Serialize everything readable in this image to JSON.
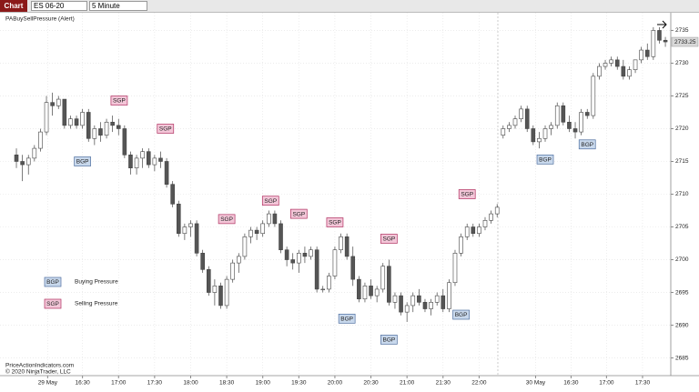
{
  "toolbar": {
    "tab": "Chart",
    "instrument": "ES 06-20",
    "interval": "5 Minute"
  },
  "chart_data": {
    "type": "candlestick",
    "title": "PABuySellPressure (Alert)",
    "footer": [
      "PriceActionIndicators.com",
      "© 2020 NinjaTrader, LLC"
    ],
    "ohlc": [
      [
        2716,
        2717,
        2714,
        2715
      ],
      [
        2715,
        2716,
        2712,
        2714.5
      ],
      [
        2714.5,
        2716,
        2713,
        2715.5
      ],
      [
        2715.5,
        2717.5,
        2715,
        2717
      ],
      [
        2717,
        2720,
        2716.5,
        2719.5
      ],
      [
        2719.5,
        2725,
        2719,
        2724
      ],
      [
        2724,
        2725.5,
        2722,
        2723.5
      ],
      [
        2723.5,
        2725,
        2723,
        2724.5
      ],
      [
        2724.5,
        2724.5,
        2720,
        2720.5
      ],
      [
        2720.5,
        2722,
        2720,
        2721.5
      ],
      [
        2721.5,
        2722,
        2720,
        2720.5
      ],
      [
        2720.5,
        2723,
        2720,
        2722.5
      ],
      [
        2722.5,
        2723,
        2718,
        2718.5
      ],
      [
        2718.5,
        2720.5,
        2717.5,
        2720
      ],
      [
        2720,
        2721,
        2718,
        2719
      ],
      [
        2719,
        2721.5,
        2718.5,
        2721
      ],
      [
        2721,
        2722,
        2719.5,
        2720.5
      ],
      [
        2720.5,
        2721.5,
        2719,
        2720
      ],
      [
        2720,
        2720.5,
        2715.5,
        2716
      ],
      [
        2716,
        2716.5,
        2713,
        2714
      ],
      [
        2714,
        2716,
        2713,
        2715.5
      ],
      [
        2715.5,
        2717,
        2714,
        2716.5
      ],
      [
        2716.5,
        2717,
        2714,
        2714.5
      ],
      [
        2714.5,
        2716,
        2713.5,
        2715.5
      ],
      [
        2715.5,
        2716.5,
        2714,
        2715
      ],
      [
        2715,
        2715.5,
        2711,
        2711.5
      ],
      [
        2711.5,
        2712,
        2708,
        2708.5
      ],
      [
        2708.5,
        2709,
        2703.5,
        2704
      ],
      [
        2704,
        2705.5,
        2703,
        2705
      ],
      [
        2705,
        2706,
        2703.5,
        2705.5
      ],
      [
        2705.5,
        2706,
        2700.5,
        2701
      ],
      [
        2701,
        2701.5,
        2698,
        2698.5
      ],
      [
        2698.5,
        2699,
        2694.5,
        2695
      ],
      [
        2695,
        2697,
        2693,
        2696
      ],
      [
        2696,
        2696.5,
        2692.5,
        2693
      ],
      [
        2693,
        2697.5,
        2692.5,
        2697
      ],
      [
        2697,
        2700,
        2696.5,
        2699.5
      ],
      [
        2699.5,
        2701,
        2698,
        2700.5
      ],
      [
        2700.5,
        2704,
        2700,
        2703.5
      ],
      [
        2703.5,
        2705,
        2702.5,
        2704.5
      ],
      [
        2704.5,
        2705,
        2703,
        2704
      ],
      [
        2704,
        2706,
        2703.5,
        2705.5
      ],
      [
        2705.5,
        2707.5,
        2705,
        2707
      ],
      [
        2707,
        2707.5,
        2705,
        2705.5
      ],
      [
        2705.5,
        2706,
        2701,
        2701.5
      ],
      [
        2701.5,
        2702,
        2699,
        2700
      ],
      [
        2700,
        2701,
        2698.5,
        2699.5
      ],
      [
        2699.5,
        2701.5,
        2698,
        2701
      ],
      [
        2701,
        2702,
        2699.5,
        2700.5
      ],
      [
        2700.5,
        2702,
        2700,
        2701.5
      ],
      [
        2701.5,
        2702,
        2695,
        2695.5
      ],
      [
        2695.5,
        2696,
        2695,
        2695.5
      ],
      [
        2695.5,
        2698,
        2695,
        2697.5
      ],
      [
        2697.5,
        2702,
        2697,
        2701.5
      ],
      [
        2701.5,
        2704,
        2701,
        2703.5
      ],
      [
        2703.5,
        2704,
        2700,
        2700.5
      ],
      [
        2700.5,
        2702,
        2696,
        2697
      ],
      [
        2697,
        2697.5,
        2693.5,
        2694
      ],
      [
        2694,
        2696.5,
        2693.5,
        2696
      ],
      [
        2696,
        2697,
        2694,
        2694.5
      ],
      [
        2694.5,
        2696,
        2693.5,
        2695.5
      ],
      [
        2695.5,
        2699.5,
        2695,
        2699
      ],
      [
        2699,
        2700,
        2693,
        2693.5
      ],
      [
        2693.5,
        2695,
        2692.5,
        2694.5
      ],
      [
        2694.5,
        2695,
        2691.5,
        2692
      ],
      [
        2692,
        2693.5,
        2690.5,
        2693
      ],
      [
        2693,
        2695,
        2692,
        2694.5
      ],
      [
        2694.5,
        2695.5,
        2693,
        2693.5
      ],
      [
        2693.5,
        2694,
        2692,
        2692.5
      ],
      [
        2692.5,
        2694,
        2691.5,
        2693.5
      ],
      [
        2693.5,
        2695,
        2693,
        2694.5
      ],
      [
        2694.5,
        2695.5,
        2692,
        2692.5
      ],
      [
        2692.5,
        2697,
        2692,
        2696.5
      ],
      [
        2696.5,
        2701.5,
        2696,
        2701
      ],
      [
        2701,
        2704,
        2700.5,
        2703.5
      ],
      [
        2703.5,
        2705.5,
        2703,
        2705
      ],
      [
        2705,
        2705.5,
        2703.5,
        2704
      ],
      [
        2704,
        2705.5,
        2703.5,
        2705
      ],
      [
        2705,
        2706.5,
        2704.5,
        2706
      ],
      [
        2706,
        2707.5,
        2705.5,
        2707
      ],
      [
        2707,
        2708.5,
        2706.5,
        2708
      ],
      [
        2719,
        2720.5,
        2718.5,
        2720
      ],
      [
        2720,
        2721,
        2719.5,
        2720.5
      ],
      [
        2720.5,
        2722,
        2720,
        2721.5
      ],
      [
        2721.5,
        2723.5,
        2721,
        2723
      ],
      [
        2723,
        2723.5,
        2719.5,
        2720
      ],
      [
        2720,
        2720.5,
        2717.5,
        2718
      ],
      [
        2718,
        2719.5,
        2717,
        2718.5
      ],
      [
        2718.5,
        2720.5,
        2718,
        2720
      ],
      [
        2720,
        2721,
        2719,
        2720.5
      ],
      [
        2720.5,
        2724,
        2720,
        2723.5
      ],
      [
        2723.5,
        2724,
        2720.5,
        2721
      ],
      [
        2721,
        2722,
        2719.5,
        2720
      ],
      [
        2720,
        2721,
        2718.5,
        2719.5
      ],
      [
        2719.5,
        2723,
        2719,
        2722.5
      ],
      [
        2722.5,
        2723,
        2721.5,
        2722
      ],
      [
        2722,
        2728.5,
        2721.5,
        2728
      ],
      [
        2728,
        2730,
        2727.5,
        2729.5
      ],
      [
        2729.5,
        2730.5,
        2729,
        2730
      ],
      [
        2730,
        2731,
        2729.5,
        2730.5
      ],
      [
        2730.5,
        2731,
        2729,
        2729.5
      ],
      [
        2729.5,
        2730.5,
        2727.5,
        2728
      ],
      [
        2728,
        2729.5,
        2727.5,
        2729
      ],
      [
        2729,
        2730.5,
        2728.5,
        2730.5
      ],
      [
        2730.5,
        2732.5,
        2730,
        2732
      ],
      [
        2732,
        2733,
        2730.5,
        2731
      ],
      [
        2731,
        2735.5,
        2730.5,
        2735
      ],
      [
        2735,
        2735.5,
        2733,
        2733.5
      ],
      [
        2733.5,
        2734,
        2732.5,
        2733.25
      ]
    ],
    "last_price": 2733.25,
    "xlim": [
      -2.73,
      108.9
    ],
    "xticks": [
      {
        "value": 5.2,
        "label": "29 May"
      },
      {
        "value": 11,
        "label": "16:30"
      },
      {
        "value": 17,
        "label": "17:00"
      },
      {
        "value": 23,
        "label": "17:30"
      },
      {
        "value": 29,
        "label": "18:00"
      },
      {
        "value": 35,
        "label": "18:30"
      },
      {
        "value": 41,
        "label": "19:00"
      },
      {
        "value": 47,
        "label": "19:30"
      },
      {
        "value": 53,
        "label": "20:00"
      },
      {
        "value": 59,
        "label": "20:30"
      },
      {
        "value": 65,
        "label": "21:00"
      },
      {
        "value": 71,
        "label": "21:30"
      },
      {
        "value": 77,
        "label": "22:00"
      },
      {
        "value": 86.4,
        "label": "30 May"
      },
      {
        "value": 92.3,
        "label": "16:30"
      },
      {
        "value": 98.2,
        "label": "17:00"
      },
      {
        "value": 104.2,
        "label": "17:30"
      }
    ],
    "ylim": [
      2682.3,
      2737.7
    ],
    "yticks": [
      2685,
      2690,
      2695,
      2700,
      2705,
      2710,
      2715,
      2720,
      2725,
      2730,
      2735
    ],
    "grid": true,
    "signals": [
      {
        "label": "SGP",
        "x": 17.1,
        "y": 2724.3
      },
      {
        "label": "SGP",
        "x": 24.8,
        "y": 2720
      },
      {
        "label": "SGP",
        "x": 35,
        "y": 2706.2
      },
      {
        "label": "SGP",
        "x": 42.3,
        "y": 2709
      },
      {
        "label": "SGP",
        "x": 47,
        "y": 2707
      },
      {
        "label": "SGP",
        "x": 53,
        "y": 2705.7
      },
      {
        "label": "SGP",
        "x": 62,
        "y": 2703.2
      },
      {
        "label": "SGP",
        "x": 75,
        "y": 2710
      },
      {
        "label": "BGP",
        "x": 11,
        "y": 2715
      },
      {
        "label": "BGP",
        "x": 55,
        "y": 2691
      },
      {
        "label": "BGP",
        "x": 62,
        "y": 2687.8
      },
      {
        "label": "BGP",
        "x": 74,
        "y": 2691.6
      },
      {
        "label": "BGP",
        "x": 88,
        "y": 2715.3
      },
      {
        "label": "BGP",
        "x": 95,
        "y": 2717.6
      }
    ],
    "legend": [
      {
        "label": "BGP",
        "text": "Buying Pressure"
      },
      {
        "label": "SGP",
        "text": "Selling Pressure"
      }
    ]
  }
}
